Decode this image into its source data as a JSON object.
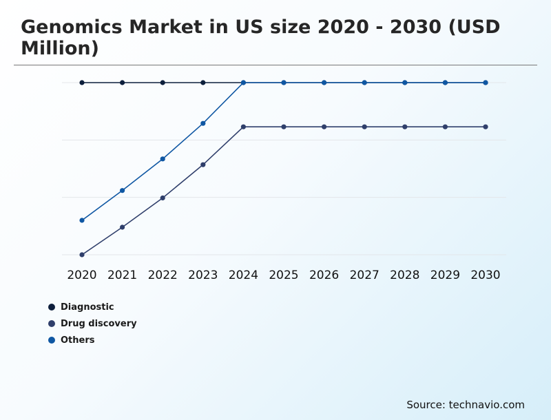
{
  "title": "Genomics Market in US size 2020 - 2030 (USD Million)",
  "source": "Source: technavio.com",
  "chart_data": {
    "type": "line",
    "x": [
      "2020",
      "2021",
      "2022",
      "2023",
      "2024",
      "2025",
      "2026",
      "2027",
      "2028",
      "2029",
      "2030"
    ],
    "ylim": [
      0,
      3
    ],
    "grid": true,
    "legend_position": "bottom-left",
    "series": [
      {
        "name": "Diagnostic",
        "color": "#0d1f3c",
        "values": [
          3,
          3,
          3,
          3,
          3,
          3,
          3,
          3,
          3,
          3,
          3
        ]
      },
      {
        "name": "Drug discovery",
        "color": "#2f3f6b",
        "values": [
          0,
          0.48,
          0.99,
          1.57,
          2.23,
          2.23,
          2.23,
          2.23,
          2.23,
          2.23,
          2.23
        ]
      },
      {
        "name": "Others",
        "color": "#0f57a3",
        "values": [
          0.6,
          1.12,
          1.67,
          2.29,
          3,
          3,
          3,
          3,
          3,
          3,
          3
        ]
      }
    ]
  }
}
